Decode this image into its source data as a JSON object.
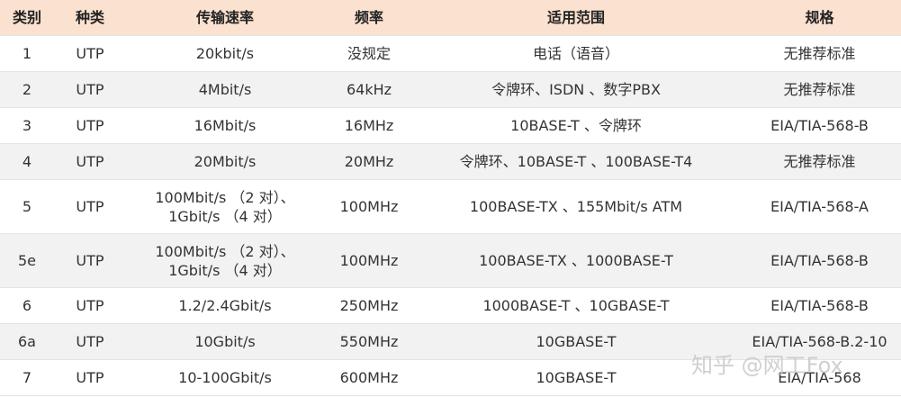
{
  "table": {
    "header": [
      "类别",
      "种类",
      "传输速率",
      "频率",
      "适用范围",
      "规格"
    ],
    "rows": [
      [
        "1",
        "UTP",
        "20kbit/s",
        "没规定",
        "电话（语音）",
        "无推荐标准"
      ],
      [
        "2",
        "UTP",
        "4Mbit/s",
        "64kHz",
        "令牌环、ISDN 、数字PBX",
        "无推荐标准"
      ],
      [
        "3",
        "UTP",
        "16Mbit/s",
        "16MHz",
        "10BASE-T 、令牌环",
        "EIA/TIA-568-B"
      ],
      [
        "4",
        "UTP",
        "20Mbit/s",
        "20MHz",
        "令牌环、10BASE-T 、100BASE-T4",
        "无推荐标准"
      ],
      [
        "5",
        "UTP",
        "100Mbit/s （2 对）、\n1Gbit/s （4 对）",
        "100MHz",
        "100BASE-TX 、155Mbit/s ATM",
        "EIA/TIA-568-A"
      ],
      [
        "5e",
        "UTP",
        "100Mbit/s （2 对）、\n1Gbit/s （4 对）",
        "100MHz",
        "100BASE-TX 、1000BASE-T",
        "EIA/TIA-568-B"
      ],
      [
        "6",
        "UTP",
        "1.2/2.4Gbit/s",
        "250MHz",
        "1000BASE-T 、10GBASE-T",
        "EIA/TIA-568-B"
      ],
      [
        "6a",
        "UTP",
        "10Gbit/s",
        "550MHz",
        "10GBASE-T",
        "EIA/TIA-568-B.2-10"
      ],
      [
        "7",
        "UTP",
        "10-100Gbit/s",
        "600MHz",
        "10GBASE-T",
        "EIA/TIA-568"
      ]
    ]
  },
  "watermark": "知乎 @网工Fox"
}
